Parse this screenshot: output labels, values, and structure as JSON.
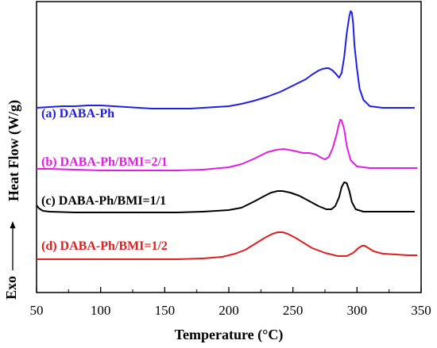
{
  "chart_data": {
    "type": "line",
    "title": "",
    "xlabel": "Temperature (°C)",
    "ylabel": "Heat Flow (W/g)",
    "exo_label": "Exo",
    "xlim": [
      50,
      350
    ],
    "x_ticks": [
      50,
      100,
      150,
      200,
      250,
      300,
      350
    ],
    "y_ticks_visible": false,
    "grid": false,
    "legend": "inline labels",
    "y_unit_note": "arbitrary, offset curves",
    "series": [
      {
        "name": "(a) DABA-Ph",
        "color": "#1f1fe6",
        "points": [
          [
            50,
            134
          ],
          [
            60,
            133
          ],
          [
            70,
            132
          ],
          [
            80,
            132
          ],
          [
            90,
            131
          ],
          [
            100,
            131
          ],
          [
            110,
            132
          ],
          [
            120,
            133
          ],
          [
            130,
            134
          ],
          [
            140,
            135
          ],
          [
            150,
            135
          ],
          [
            160,
            135
          ],
          [
            170,
            135
          ],
          [
            180,
            134
          ],
          [
            190,
            133
          ],
          [
            200,
            132
          ],
          [
            210,
            129
          ],
          [
            220,
            125
          ],
          [
            230,
            120
          ],
          [
            240,
            114
          ],
          [
            250,
            106
          ],
          [
            255,
            102
          ],
          [
            260,
            98
          ],
          [
            265,
            92
          ],
          [
            270,
            87
          ],
          [
            273,
            85
          ],
          [
            276,
            84
          ],
          [
            278,
            84
          ],
          [
            281,
            87
          ],
          [
            284,
            92
          ],
          [
            286,
            96
          ],
          [
            288,
            90
          ],
          [
            290,
            70
          ],
          [
            292,
            40
          ],
          [
            294,
            18
          ],
          [
            295,
            12
          ],
          [
            296,
            14
          ],
          [
            297,
            28
          ],
          [
            298,
            55
          ],
          [
            300,
            85
          ],
          [
            302,
            110
          ],
          [
            305,
            124
          ],
          [
            310,
            132
          ],
          [
            320,
            134
          ],
          [
            330,
            134
          ],
          [
            340,
            134
          ],
          [
            345,
            134
          ]
        ]
      },
      {
        "name": "(b) DABA-Ph/BMI=2/1",
        "color": "#e020e0",
        "points": [
          [
            50,
            211
          ],
          [
            60,
            211
          ],
          [
            80,
            212
          ],
          [
            100,
            213
          ],
          [
            120,
            213
          ],
          [
            140,
            213
          ],
          [
            160,
            213
          ],
          [
            180,
            212
          ],
          [
            200,
            209
          ],
          [
            210,
            205
          ],
          [
            220,
            198
          ],
          [
            230,
            190
          ],
          [
            237,
            187
          ],
          [
            243,
            186
          ],
          [
            250,
            188
          ],
          [
            258,
            191
          ],
          [
            263,
            191
          ],
          [
            268,
            193
          ],
          [
            272,
            197
          ],
          [
            275,
            199
          ],
          [
            278,
            196
          ],
          [
            281,
            185
          ],
          [
            284,
            168
          ],
          [
            286,
            154
          ],
          [
            287,
            149
          ],
          [
            288,
            150
          ],
          [
            290,
            161
          ],
          [
            292,
            182
          ],
          [
            295,
            200
          ],
          [
            300,
            208
          ],
          [
            310,
            210
          ],
          [
            320,
            210
          ],
          [
            330,
            210
          ],
          [
            340,
            210
          ],
          [
            347,
            210
          ]
        ]
      },
      {
        "name": "(c) DABA-Ph/BMI=1/1",
        "color": "#000000",
        "points": [
          [
            50,
            257
          ],
          [
            52,
            261
          ],
          [
            55,
            264
          ],
          [
            60,
            265
          ],
          [
            80,
            266
          ],
          [
            100,
            266
          ],
          [
            120,
            266
          ],
          [
            140,
            266
          ],
          [
            160,
            266
          ],
          [
            180,
            265
          ],
          [
            200,
            263
          ],
          [
            210,
            260
          ],
          [
            220,
            252
          ],
          [
            228,
            245
          ],
          [
            233,
            241
          ],
          [
            238,
            239
          ],
          [
            242,
            239
          ],
          [
            248,
            241
          ],
          [
            255,
            245
          ],
          [
            262,
            251
          ],
          [
            270,
            258
          ],
          [
            276,
            262
          ],
          [
            280,
            262
          ],
          [
            283,
            258
          ],
          [
            286,
            247
          ],
          [
            288,
            234
          ],
          [
            290,
            228
          ],
          [
            292,
            229
          ],
          [
            294,
            239
          ],
          [
            296,
            253
          ],
          [
            299,
            262
          ],
          [
            305,
            265
          ],
          [
            315,
            265
          ],
          [
            330,
            265
          ],
          [
            345,
            265
          ]
        ]
      },
      {
        "name": "(d) DABA-Ph/BMI=1/2",
        "color": "#e02020",
        "points": [
          [
            50,
            325
          ],
          [
            60,
            325
          ],
          [
            80,
            325
          ],
          [
            100,
            325
          ],
          [
            120,
            325
          ],
          [
            140,
            325
          ],
          [
            160,
            325
          ],
          [
            180,
            324
          ],
          [
            195,
            322
          ],
          [
            205,
            318
          ],
          [
            213,
            313
          ],
          [
            220,
            306
          ],
          [
            228,
            298
          ],
          [
            234,
            293
          ],
          [
            238,
            291
          ],
          [
            242,
            291
          ],
          [
            246,
            293
          ],
          [
            252,
            298
          ],
          [
            258,
            304
          ],
          [
            265,
            311
          ],
          [
            275,
            317
          ],
          [
            285,
            321
          ],
          [
            292,
            321
          ],
          [
            297,
            317
          ],
          [
            301,
            311
          ],
          [
            304,
            308
          ],
          [
            306,
            308
          ],
          [
            309,
            311
          ],
          [
            313,
            315
          ],
          [
            320,
            318
          ],
          [
            330,
            319
          ],
          [
            340,
            320
          ],
          [
            347,
            320
          ]
        ]
      }
    ]
  }
}
